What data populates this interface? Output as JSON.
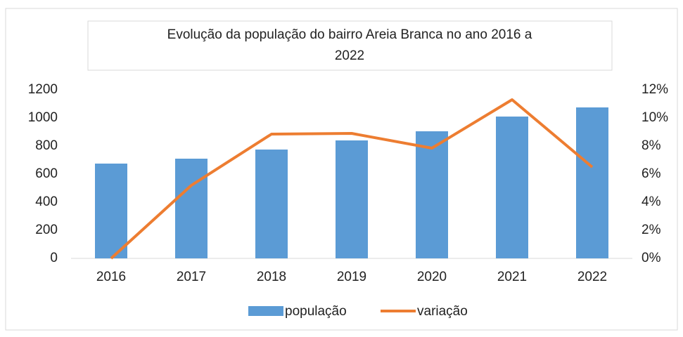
{
  "chart_data": {
    "type": "bar",
    "title": "Evolução da população do bairro Areia Branca no ano 2016 a 2022",
    "categories": [
      "2016",
      "2017",
      "2018",
      "2019",
      "2020",
      "2021",
      "2022"
    ],
    "series": [
      {
        "name": "população",
        "color": "#5b9bd5",
        "type": "bar",
        "values": [
          675,
          710,
          775,
          840,
          905,
          1010,
          1075
        ]
      },
      {
        "name": "variação",
        "color": "#ed7d31",
        "type": "line",
        "axis": "y2",
        "values": [
          0,
          5.2,
          8.85,
          8.9,
          7.85,
          11.3,
          6.5
        ]
      }
    ],
    "ylim": [
      0,
      1200
    ],
    "yticks": [
      0,
      200,
      400,
      600,
      800,
      1000,
      1200
    ],
    "y2lim": [
      0,
      12
    ],
    "y2ticks": [
      {
        "value": 0,
        "label": "0%"
      },
      {
        "value": 2,
        "label": "2%"
      },
      {
        "value": 4,
        "label": "4%"
      },
      {
        "value": 6,
        "label": "6%"
      },
      {
        "value": 8,
        "label": "8%"
      },
      {
        "value": 10,
        "label": "10%"
      },
      {
        "value": 12,
        "label": "12%"
      }
    ],
    "legend": "bottom"
  }
}
